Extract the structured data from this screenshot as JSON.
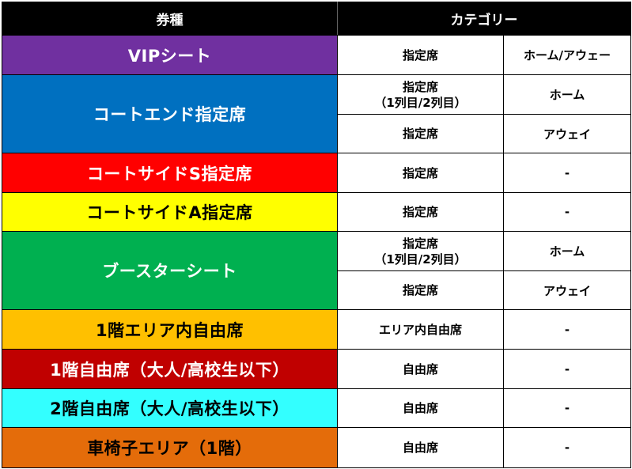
{
  "header": {
    "ticket_type": "券種",
    "category": "カテゴリー"
  },
  "colors": {
    "vip": "#7030a0",
    "court_end": "#0070c0",
    "court_side_s": "#ff0000",
    "court_side_a": "#ffff00",
    "booster": "#00b050",
    "floor1_area": "#ffc000",
    "floor1_free": "#c00000",
    "floor2_free": "#33ffff",
    "wheelchair": "#e46c0a"
  },
  "rows": {
    "vip": {
      "ticket": "VIPシート",
      "category": "指定席",
      "sub": "ホーム/アウェー"
    },
    "court_end": {
      "ticket": "コートエンド指定席",
      "a_category_line1": "指定席",
      "a_category_line2": "（1列目/2列目）",
      "a_sub": "ホーム",
      "b_category": "指定席",
      "b_sub": "アウェイ"
    },
    "court_side_s": {
      "ticket": "コートサイドS指定席",
      "category": "指定席",
      "sub": "-"
    },
    "court_side_a": {
      "ticket": "コートサイドA指定席",
      "category": "指定席",
      "sub": "-"
    },
    "booster": {
      "ticket": "ブースターシート",
      "a_category_line1": "指定席",
      "a_category_line2": "（1列目/2列目）",
      "a_sub": "ホーム",
      "b_category": "指定席",
      "b_sub": "アウェイ"
    },
    "floor1_area": {
      "ticket": "1階エリア内自由席",
      "category": "エリア内自由席",
      "sub": "-"
    },
    "floor1_free": {
      "ticket": "1階自由席（大人/高校生以下）",
      "category": "自由席",
      "sub": "-"
    },
    "floor2_free": {
      "ticket": "2階自由席（大人/高校生以下）",
      "category": "自由席",
      "sub": "-"
    },
    "wheelchair": {
      "ticket": "車椅子エリア（1階）",
      "category": "自由席",
      "sub": "-"
    }
  }
}
